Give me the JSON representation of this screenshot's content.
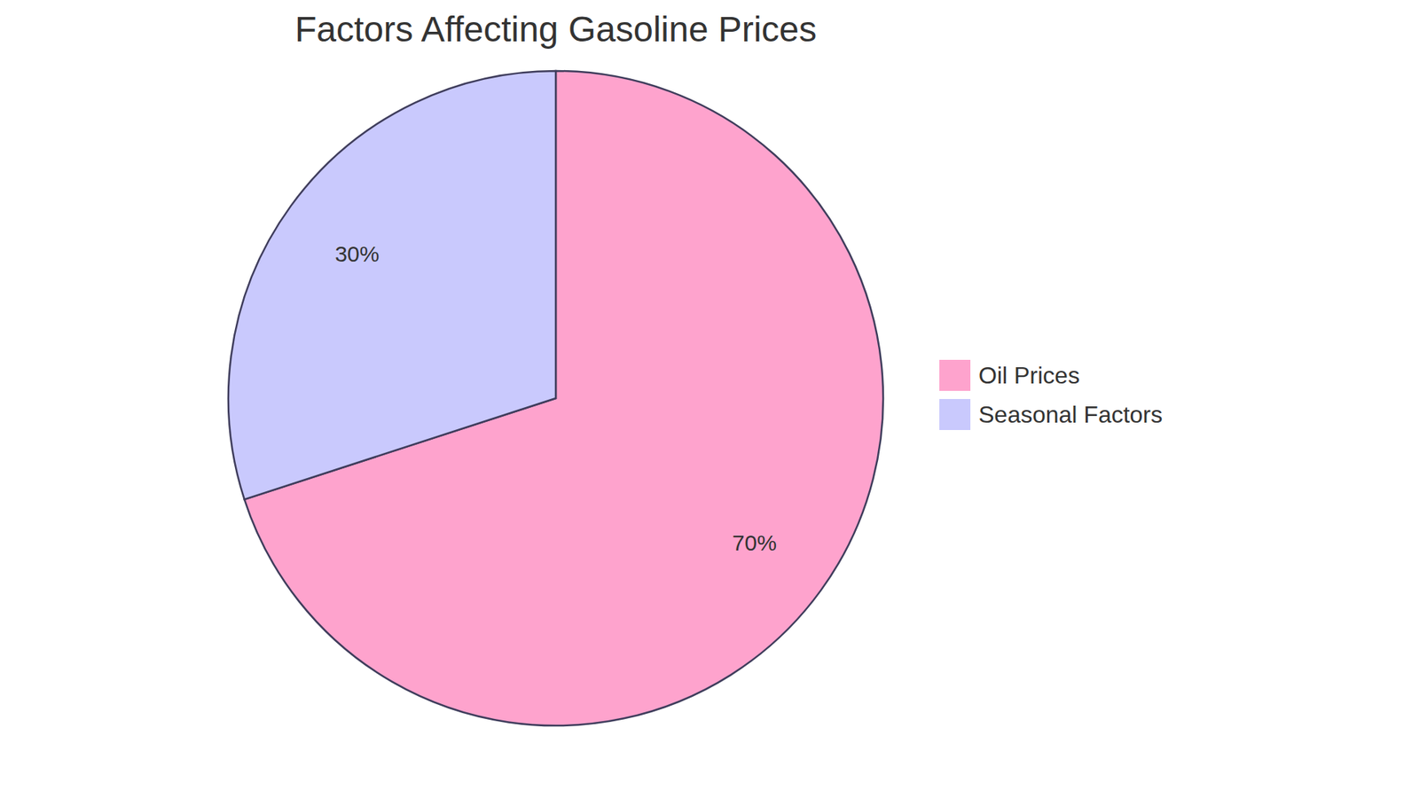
{
  "chart_data": {
    "type": "pie",
    "title": "Factors Affecting Gasoline Prices",
    "categories": [
      "Oil Prices",
      "Seasonal Factors"
    ],
    "values": [
      70,
      30
    ],
    "value_labels": [
      "70%",
      "30%"
    ],
    "colors": [
      "#fea3cd",
      "#c9c9fd"
    ],
    "data_labels": true,
    "legend": "right"
  }
}
